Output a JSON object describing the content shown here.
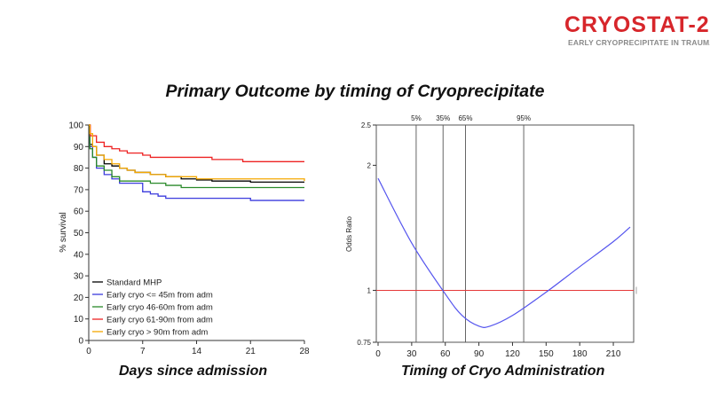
{
  "logo": {
    "text": "CRYOSTAT-2",
    "subtitle": "EARLY CRYOPRECIPITATE IN TRAUMA",
    "colors": {
      "primary": "#d7262b",
      "secondary": "#8a8a8a"
    }
  },
  "slide_title": "Primary Outcome by timing of Cryoprecipitate",
  "captions": {
    "left": "Days since admission",
    "right": "Timing of Cryo Administration"
  },
  "chart_data": [
    {
      "type": "line",
      "subtype": "step",
      "title": "",
      "xlabel": "Days since admission",
      "ylabel": "% survival",
      "xlim": [
        0,
        28
      ],
      "ylim": [
        0,
        100
      ],
      "xticks": [
        0,
        7,
        14,
        21,
        28
      ],
      "yticks": [
        0,
        10,
        20,
        30,
        40,
        50,
        60,
        70,
        80,
        90,
        100
      ],
      "grid": false,
      "legend": "bottom-left",
      "series": [
        {
          "name": "Standard MHP",
          "color": "#000000",
          "x": [
            0,
            0.15,
            0.5,
            1,
            2,
            3,
            4,
            5,
            6,
            8,
            10,
            12,
            14,
            16,
            21,
            28
          ],
          "y": [
            100,
            91,
            90,
            86,
            82,
            81,
            80,
            79,
            78,
            77,
            76,
            75,
            74.5,
            74,
            73.5,
            73.5
          ]
        },
        {
          "name": "Early cryo <= 45m from adm",
          "color": "#3b3bdd",
          "x": [
            0,
            0.15,
            0.5,
            1,
            2,
            3,
            4,
            6,
            7,
            8,
            9,
            10,
            21,
            28
          ],
          "y": [
            100,
            90,
            85,
            80,
            77,
            75,
            73,
            73,
            69,
            68,
            67,
            66,
            65,
            65
          ]
        },
        {
          "name": "Early cryo 46-60m from adm",
          "color": "#2a8a2a",
          "x": [
            0,
            0.15,
            0.5,
            1,
            2,
            3,
            4,
            6,
            8,
            10,
            12,
            28
          ],
          "y": [
            100,
            89,
            85,
            81,
            79,
            76,
            74,
            74,
            73,
            72,
            71,
            71
          ]
        },
        {
          "name": "Early cryo 61-90m from adm",
          "color": "#ee2222",
          "x": [
            0,
            0.2,
            1,
            2,
            3,
            4,
            5,
            6,
            7,
            8,
            14,
            16,
            18,
            20,
            28
          ],
          "y": [
            100,
            95,
            92,
            90,
            89,
            88,
            87,
            87,
            86,
            85,
            85,
            84,
            84,
            83,
            83
          ]
        },
        {
          "name": "Early cryo > 90m from adm",
          "color": "#f5a800",
          "x": [
            0,
            0.15,
            0.5,
            1,
            2,
            3,
            4,
            5,
            6,
            8,
            10,
            14,
            28
          ],
          "y": [
            100,
            96,
            90,
            86,
            84,
            82,
            80,
            79,
            78,
            77,
            76,
            75,
            74
          ]
        }
      ]
    },
    {
      "type": "line",
      "title": "",
      "xlabel": "Timing of Cryo Administration",
      "ylabel": "Odds Ratio",
      "y_scale": "log",
      "xlim": [
        0,
        225
      ],
      "ylim": [
        0.75,
        2.5
      ],
      "xticks": [
        0,
        30,
        60,
        90,
        120,
        150,
        180,
        210
      ],
      "yticks": [
        0.75,
        1,
        2,
        2.5
      ],
      "ytick_labels": [
        "0.75",
        "1",
        "2",
        "2.5"
      ],
      "reference_line": {
        "y": 1,
        "color": "#e53a3a"
      },
      "percentile_lines": [
        {
          "label": "5%",
          "x": 34
        },
        {
          "label": "35%",
          "x": 58
        },
        {
          "label": "65%",
          "x": 78
        },
        {
          "label": "95%",
          "x": 130
        }
      ],
      "series": [
        {
          "color": "#5555ee",
          "x": [
            0,
            30,
            60,
            75,
            90,
            100,
            120,
            150,
            180,
            210,
            225
          ],
          "y": [
            1.86,
            1.3,
            0.98,
            0.87,
            0.82,
            0.82,
            0.87,
            0.99,
            1.14,
            1.31,
            1.42
          ]
        }
      ]
    }
  ]
}
